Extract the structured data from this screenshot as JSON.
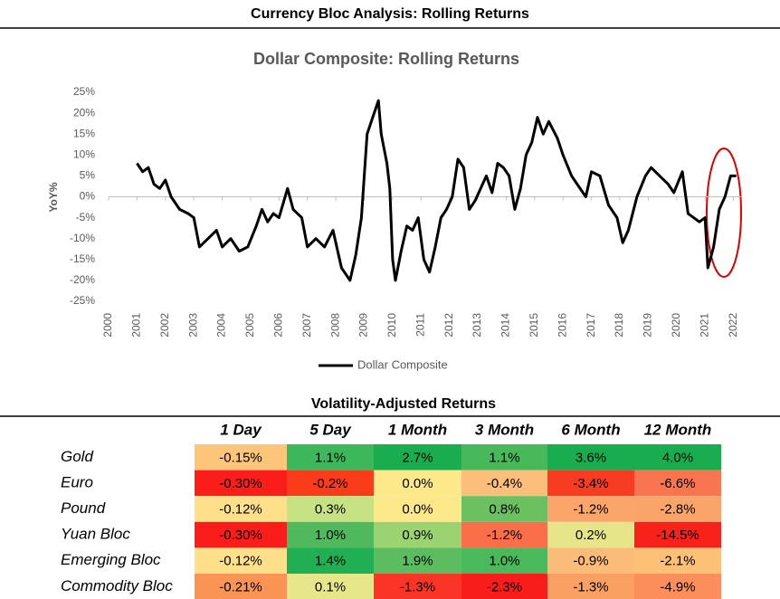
{
  "header": {
    "title": "Currency Bloc Analysis: Rolling Returns"
  },
  "chart_data": {
    "type": "line",
    "title": "Dollar Composite: Rolling Returns",
    "y_label": "YoY%",
    "x": [
      2001.0,
      2001.2,
      2001.4,
      2001.6,
      2001.8,
      2002.0,
      2002.2,
      2002.5,
      2002.8,
      2003.0,
      2003.2,
      2003.5,
      2003.8,
      2004.0,
      2004.3,
      2004.6,
      2004.9,
      2005.2,
      2005.4,
      2005.6,
      2005.8,
      2006.0,
      2006.3,
      2006.5,
      2006.8,
      2007.0,
      2007.3,
      2007.6,
      2007.9,
      2008.2,
      2008.5,
      2008.7,
      2008.9,
      2009.1,
      2009.3,
      2009.5,
      2009.6,
      2009.8,
      2009.9,
      2010.0,
      2010.1,
      2010.3,
      2010.5,
      2010.7,
      2010.9,
      2011.1,
      2011.3,
      2011.5,
      2011.7,
      2011.9,
      2012.1,
      2012.3,
      2012.5,
      2012.7,
      2012.9,
      2013.1,
      2013.3,
      2013.5,
      2013.7,
      2013.9,
      2014.1,
      2014.3,
      2014.5,
      2014.7,
      2014.9,
      2015.1,
      2015.3,
      2015.5,
      2015.8,
      2016.0,
      2016.3,
      2016.5,
      2016.8,
      2017.0,
      2017.3,
      2017.6,
      2017.9,
      2018.1,
      2018.3,
      2018.6,
      2018.9,
      2019.1,
      2019.4,
      2019.7,
      2019.9,
      2020.2,
      2020.4,
      2020.6,
      2020.8,
      2021.0,
      2021.1,
      2021.3,
      2021.5,
      2021.7,
      2021.9,
      2022.1
    ],
    "series": [
      {
        "name": "Dollar Composite",
        "color": "#000000",
        "values": [
          8,
          6,
          7,
          3,
          2,
          4,
          0,
          -3,
          -4,
          -5,
          -12,
          -10,
          -8,
          -12,
          -10,
          -13,
          -12,
          -7,
          -3,
          -6,
          -4,
          -5,
          2,
          -3,
          -5,
          -12,
          -10,
          -12,
          -8,
          -17,
          -20,
          -14,
          -5,
          15,
          19,
          23,
          15,
          8,
          2,
          -15,
          -20,
          -13,
          -7,
          -8,
          -5,
          -15,
          -18,
          -12,
          -5,
          -3,
          0,
          9,
          7,
          -3,
          -1,
          2,
          5,
          1,
          8,
          7,
          5,
          -3,
          2,
          10,
          13,
          19,
          15,
          18,
          14,
          10,
          5,
          3,
          0,
          6,
          5,
          -2,
          -5,
          -11,
          -8,
          0,
          5,
          7,
          5,
          3,
          1,
          6,
          -4,
          -5,
          -6,
          -5,
          -17,
          -12,
          -3,
          0,
          5,
          5
        ]
      }
    ],
    "xlim": [
      2000,
      2022.3
    ],
    "xticks": [
      2000,
      2001,
      2002,
      2003,
      2004,
      2005,
      2006,
      2007,
      2008,
      2009,
      2010,
      2011,
      2012,
      2013,
      2014,
      2015,
      2016,
      2017,
      2018,
      2019,
      2020,
      2021,
      2022
    ],
    "ylim": [
      -25,
      25
    ],
    "yticks": [
      {
        "value": -25,
        "label": "-25%"
      },
      {
        "value": -20,
        "label": "-20%"
      },
      {
        "value": -15,
        "label": "-15%"
      },
      {
        "value": -10,
        "label": "-10%"
      },
      {
        "value": -5,
        "label": "-5%"
      },
      {
        "value": 0,
        "label": "0%"
      },
      {
        "value": 5,
        "label": "5%"
      },
      {
        "value": 10,
        "label": "10%"
      },
      {
        "value": 15,
        "label": "15%"
      },
      {
        "value": 20,
        "label": "20%"
      },
      {
        "value": 25,
        "label": "25%"
      }
    ],
    "grid": false,
    "legend": "bottom"
  },
  "table": {
    "title": "Volatility-Adjusted Returns",
    "columns": [
      "1 Day",
      "5 Day",
      "1 Month",
      "3 Month",
      "6 Month",
      "12 Month"
    ],
    "rows": [
      {
        "label": "Gold",
        "cells": [
          "-0.15%",
          "1.1%",
          "2.7%",
          "1.1%",
          "3.6%",
          "4.0%"
        ],
        "colors": [
          "#fcc57a",
          "#3cb85a",
          "#1aad50",
          "#48b95b",
          "#1aad50",
          "#1aad50"
        ]
      },
      {
        "label": "Euro",
        "cells": [
          "-0.30%",
          "-0.2%",
          "0.0%",
          "-0.4%",
          "-3.4%",
          "-6.6%"
        ],
        "colors": [
          "#fa1d1a",
          "#fa3c1a",
          "#fde98a",
          "#fcbf7b",
          "#f83c22",
          "#f87550"
        ]
      },
      {
        "label": "Pound",
        "cells": [
          "-0.12%",
          "0.3%",
          "0.0%",
          "0.8%",
          "-1.2%",
          "-2.8%"
        ],
        "colors": [
          "#fee08a",
          "#c7e282",
          "#fde98a",
          "#6bc060",
          "#fba56a",
          "#fba46a"
        ]
      },
      {
        "label": "Yuan Bloc",
        "cells": [
          "-0.30%",
          "1.0%",
          "0.9%",
          "-1.2%",
          "0.2%",
          "-14.5%"
        ],
        "colors": [
          "#fa1d1a",
          "#50b95e",
          "#9bd370",
          "#fa6f4a",
          "#e7e58a",
          "#f8221a"
        ]
      },
      {
        "label": "Emerging Bloc",
        "cells": [
          "-0.12%",
          "1.4%",
          "1.9%",
          "1.0%",
          "-0.9%",
          "-2.1%"
        ],
        "colors": [
          "#fee08a",
          "#20af52",
          "#5bbd60",
          "#4ab95c",
          "#fcbc79",
          "#fcc177"
        ]
      },
      {
        "label": "Commodity Bloc",
        "cells": [
          "-0.21%",
          "0.1%",
          "-1.3%",
          "-2.3%",
          "-1.3%",
          "-4.9%"
        ],
        "colors": [
          "#fa9454",
          "#e8e68b",
          "#fa3525",
          "#f81d1a",
          "#fba063",
          "#fb8e5a"
        ]
      }
    ]
  }
}
